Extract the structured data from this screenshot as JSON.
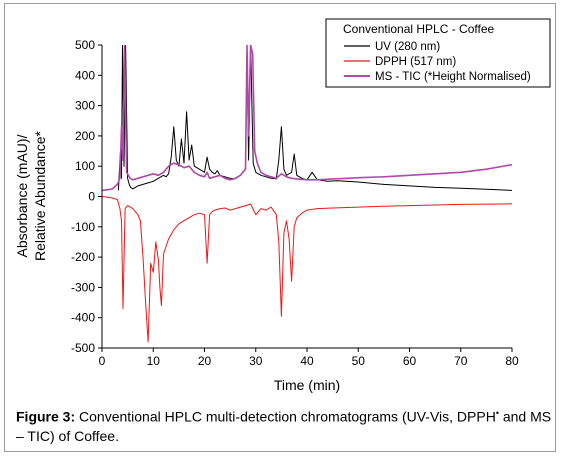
{
  "caption": {
    "label": "Figure 3:",
    "text": "Conventional HPLC multi-detection chromatograms (UV-Vis, DPPH",
    "superscript": "•",
    "text2": "and MS – TIC) of Coffee."
  },
  "chart_data": {
    "type": "line",
    "xlabel": "Time (min)",
    "ylabel": [
      "Absorbance (mAU)/",
      "Relative Abundance*"
    ],
    "xlim": [
      0,
      80
    ],
    "ylim": [
      -500,
      500
    ],
    "xticks": [
      0,
      10,
      20,
      30,
      40,
      50,
      60,
      70,
      80
    ],
    "yticks": [
      500,
      400,
      300,
      200,
      100,
      0,
      -100,
      -200,
      -300,
      -400,
      -500
    ],
    "grid": false,
    "legend": {
      "placement": "top-right",
      "title": "Conventional HPLC - Coffee"
    },
    "series": [
      {
        "name": "UV (280 nm)",
        "color": "#000000",
        "x": [
          0,
          2.5,
          3.2,
          3.6,
          3.8,
          4.0,
          4.3,
          4.6,
          5.0,
          5.3,
          5.6,
          6.0,
          6.5,
          7,
          8,
          9,
          10,
          11,
          12,
          12.5,
          13,
          13.5,
          14,
          14.5,
          15,
          15.5,
          16,
          16.5,
          17,
          17.5,
          18,
          19,
          20,
          20.5,
          21,
          21.5,
          22,
          22.5,
          23,
          24,
          25,
          26,
          27,
          28,
          28.3,
          28.6,
          29,
          29.5,
          30,
          31,
          32,
          33,
          34,
          34.5,
          35,
          35.5,
          36,
          37,
          37.5,
          38,
          39,
          40,
          41,
          42,
          44,
          46,
          50,
          55,
          60,
          65,
          70,
          75,
          80
        ],
        "y": [
          null,
          null,
          20,
          150,
          60,
          500,
          100,
          500,
          60,
          40,
          30,
          25,
          30,
          35,
          40,
          45,
          50,
          60,
          70,
          65,
          75,
          130,
          230,
          120,
          100,
          190,
          110,
          280,
          120,
          170,
          100,
          90,
          80,
          130,
          90,
          80,
          75,
          85,
          70,
          65,
          60,
          58,
          70,
          90,
          450,
          120,
          500,
          110,
          80,
          70,
          65,
          60,
          58,
          120,
          230,
          90,
          70,
          80,
          140,
          70,
          60,
          55,
          80,
          55,
          50,
          52,
          48,
          40,
          35,
          30,
          27,
          24,
          20
        ]
      },
      {
        "name": "DPPH (517 nm)",
        "color": "#e8191b",
        "x": [
          0,
          1,
          2,
          3,
          3.5,
          3.8,
          4.1,
          4.5,
          5,
          6,
          7,
          7.5,
          8,
          8.5,
          9,
          9.5,
          10,
          10.5,
          11,
          11.3,
          11.6,
          12,
          13,
          14,
          15,
          16,
          17,
          18,
          19,
          20,
          20.5,
          21,
          21.5,
          22,
          23,
          24,
          25,
          26,
          27,
          28,
          29,
          30,
          31,
          32,
          33,
          34,
          34.5,
          35,
          35.5,
          36,
          36.5,
          37,
          37.5,
          38,
          39,
          40,
          42,
          45,
          50,
          55,
          60,
          65,
          70,
          75,
          80
        ],
        "y": [
          0,
          -2,
          -5,
          -10,
          -40,
          -80,
          -370,
          -40,
          -30,
          -40,
          -60,
          -80,
          -200,
          -350,
          -480,
          -220,
          -250,
          -150,
          -210,
          -300,
          -360,
          -190,
          -140,
          -110,
          -90,
          -80,
          -70,
          -60,
          -55,
          -60,
          -220,
          -60,
          -50,
          -45,
          -40,
          -38,
          -45,
          -40,
          -35,
          -30,
          -25,
          -60,
          -40,
          -45,
          -35,
          -60,
          -150,
          -395,
          -120,
          -80,
          -140,
          -280,
          -100,
          -70,
          -55,
          -45,
          -40,
          -38,
          -35,
          -32,
          -30,
          -28,
          -26,
          -25,
          -24
        ]
      },
      {
        "name": "MS - TIC (*Height Normalised)",
        "color": "#b04aa8",
        "x": [
          0,
          1,
          2,
          3,
          3.5,
          3.8,
          4.1,
          4.4,
          4.8,
          5.5,
          6,
          7,
          8,
          9,
          10,
          11,
          12,
          12.5,
          13,
          14,
          15,
          16,
          17,
          18,
          19,
          20,
          20.5,
          21,
          22,
          23,
          24,
          25,
          26,
          27,
          28,
          28.3,
          28.6,
          29,
          29.4,
          29.8,
          30.3,
          31,
          32,
          33,
          34,
          35,
          36,
          37,
          38,
          40,
          42,
          45,
          48,
          50,
          55,
          60,
          65,
          70,
          75,
          80
        ],
        "y": [
          20,
          22,
          25,
          40,
          60,
          230,
          120,
          500,
          80,
          60,
          55,
          60,
          65,
          70,
          75,
          70,
          80,
          90,
          100,
          110,
          105,
          95,
          100,
          80,
          70,
          65,
          80,
          60,
          65,
          70,
          60,
          55,
          60,
          70,
          90,
          500,
          200,
          500,
          470,
          150,
          110,
          80,
          70,
          65,
          60,
          75,
          65,
          60,
          58,
          55,
          55,
          58,
          60,
          62,
          65,
          70,
          75,
          80,
          90,
          105
        ]
      }
    ]
  }
}
